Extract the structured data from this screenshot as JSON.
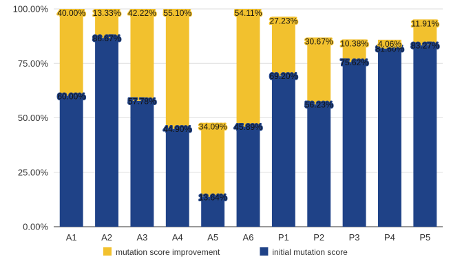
{
  "chart_data": {
    "type": "bar",
    "stacked": true,
    "categories": [
      "A1",
      "A2",
      "A3",
      "A4",
      "A5",
      "A6",
      "P1",
      "P2",
      "P3",
      "P4",
      "P5"
    ],
    "series": [
      {
        "name": "initial mutation score",
        "color": "#1f4287",
        "values": [
          60.0,
          86.67,
          57.78,
          44.9,
          13.64,
          45.89,
          69.2,
          56.23,
          75.62,
          81.8,
          83.27
        ],
        "labels": [
          "60.00%",
          "86.67%",
          "57.78%",
          "44.90%",
          "13.64%",
          "45.89%",
          "69.20%",
          "56.23%",
          "75.62%",
          "81.80%",
          "83.27%"
        ]
      },
      {
        "name": "mutation score improvement",
        "color": "#f2c12e",
        "values": [
          40.0,
          13.33,
          42.22,
          55.1,
          34.09,
          54.11,
          27.23,
          30.67,
          10.38,
          4.06,
          11.91
        ],
        "labels": [
          "40.00%",
          "13.33%",
          "42.22%",
          "55.10%",
          "34.09%",
          "54.11%",
          "27.23%",
          "30.67%",
          "10.38%",
          "4.06%",
          "11.91%"
        ]
      }
    ],
    "yticks": [
      "0.00%",
      "25.00%",
      "50.00%",
      "75.00%",
      "100.00%"
    ],
    "ylim": [
      0,
      100
    ],
    "grid": true,
    "legend_position": "bottom",
    "legend": [
      "mutation score improvement",
      "initial mutation score"
    ]
  }
}
